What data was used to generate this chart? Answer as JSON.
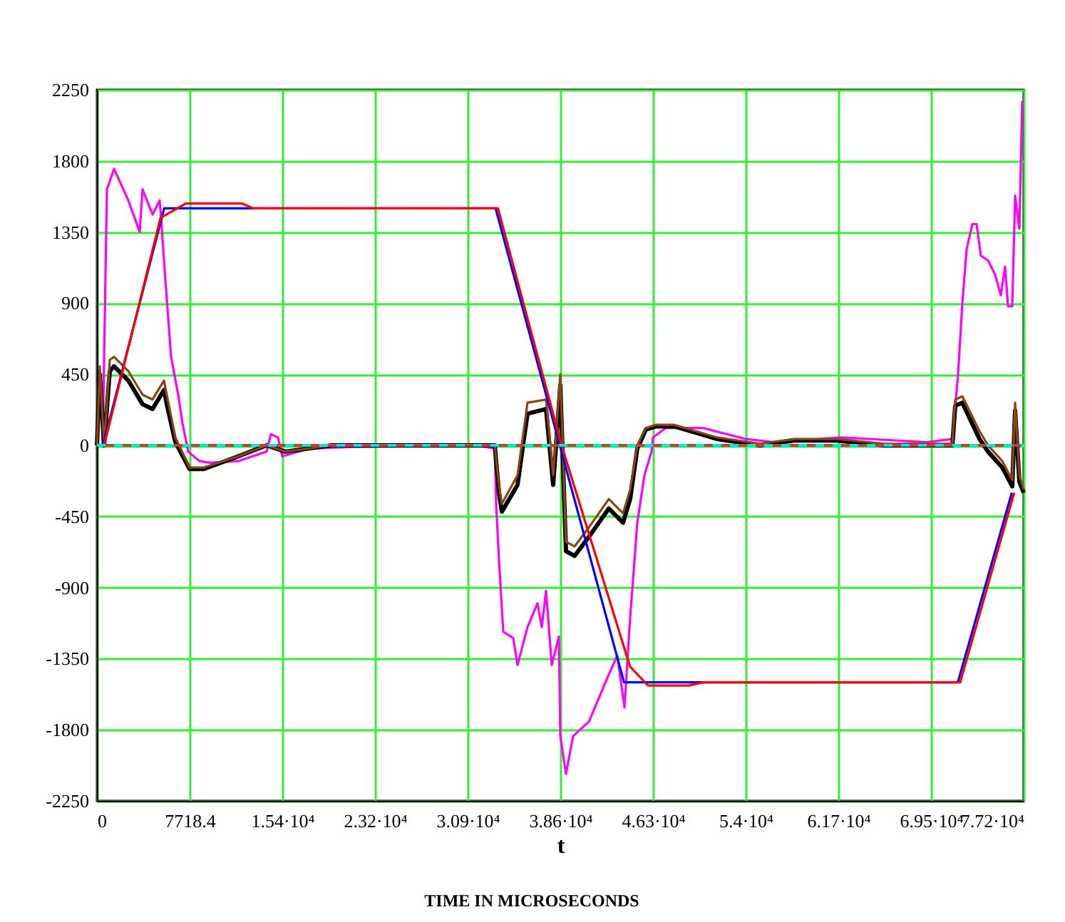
{
  "chart_data": {
    "type": "line",
    "xlabel": "t",
    "annotations": [
      "TIME IN MICROSECONDS"
    ],
    "xlim": [
      0,
      77184
    ],
    "ylim": [
      -2250,
      2250
    ],
    "xticks": [
      0,
      7718.4,
      {
        "value": 15436.8,
        "label": "1.54·10⁴"
      },
      {
        "value": 23155.2,
        "label": "2.32·10⁴"
      },
      {
        "value": 30873.6,
        "label": "3.09·10⁴"
      },
      {
        "value": 38592,
        "label": "3.86·10⁴"
      },
      {
        "value": 46310.4,
        "label": "4.63·10⁴"
      },
      {
        "value": 54028.8,
        "label": "5.4·10⁴"
      },
      {
        "value": 61747.2,
        "label": "6.17·10⁴"
      },
      {
        "value": 69465.6,
        "label": "6.95·10⁴"
      },
      {
        "value": 77184,
        "label": "7.72·10⁴"
      }
    ],
    "yticks": [
      -2250,
      -1800,
      -1350,
      -900,
      -450,
      0,
      450,
      900,
      1350,
      1800,
      2250
    ],
    "grid": true,
    "marker": "none",
    "line_style": "solid",
    "ref_lines": [
      {
        "axis": "y",
        "value": 0,
        "color": "#00e5ee",
        "line_style": "dashed"
      },
      {
        "axis": "y",
        "value": 0,
        "color": "#c04040",
        "line_style": "dashed"
      }
    ],
    "series": [
      {
        "color": "#ff00ff",
        "x": [
          0,
          475,
          831,
          1425,
          2612,
          3562,
          3800,
          4631,
          5225,
          5344,
          5581,
          6175,
          6768,
          7125,
          7600,
          8550,
          9381,
          11756,
          14131,
          14487,
          15081,
          15437,
          17693,
          21612,
          31467,
          33130,
          33249,
          33486,
          33842,
          34674,
          35030,
          35861,
          36692,
          37048,
          37405,
          37880,
          38473,
          38592,
          39067,
          39661,
          40967,
          42629,
          43342,
          43936,
          44411,
          45004,
          45598,
          46192,
          46310,
          47379,
          50467,
          54029,
          56404,
          61985,
          69110,
          71247,
          71722,
          72078,
          72434,
          72909,
          73266,
          73622,
          74216,
          74809,
          75284,
          75641,
          75878,
          76234,
          76472,
          76828,
          77066
        ],
        "values": [
          0,
          0,
          1620,
          1750,
          1550,
          1350,
          1620,
          1460,
          1550,
          1440,
          1170,
          560,
          320,
          140,
          -40,
          -100,
          -110,
          -100,
          -40,
          70,
          50,
          -70,
          -20,
          -10,
          0,
          -20,
          -370,
          -730,
          -1180,
          -1220,
          -1390,
          -1150,
          -1000,
          -1150,
          -920,
          -1390,
          -1210,
          -1840,
          -2080,
          -1840,
          -1750,
          -1450,
          -1330,
          -1660,
          -1090,
          -490,
          -190,
          -40,
          50,
          110,
          110,
          40,
          20,
          50,
          20,
          40,
          450,
          900,
          1240,
          1400,
          1400,
          1200,
          1170,
          1080,
          950,
          1130,
          880,
          880,
          1580,
          1370,
          2180
        ]
      },
      {
        "color": "#000000",
        "x": [
          0,
          237,
          594,
          1069,
          1425,
          2612,
          3800,
          4631,
          5581,
          5818,
          6531,
          7718,
          8906,
          11756,
          14131,
          15674,
          19593,
          33130,
          33486,
          33724,
          35030,
          35861,
          37405,
          37998,
          38592,
          39067,
          39780,
          40967,
          42629,
          43817,
          44411,
          45004,
          45717,
          46548,
          48092,
          51654,
          55216,
          58066,
          61628,
          65547,
          71247,
          71484,
          72078,
          73503,
          74216,
          75403,
          76234,
          76472,
          76828,
          77184
        ],
        "values": [
          0,
          450,
          0,
          470,
          500,
          410,
          260,
          230,
          350,
          260,
          20,
          -150,
          -150,
          -70,
          0,
          -40,
          0,
          0,
          -300,
          -420,
          -250,
          200,
          230,
          -250,
          380,
          -670,
          -700,
          -580,
          -400,
          -490,
          -340,
          -20,
          100,
          120,
          120,
          40,
          0,
          30,
          30,
          0,
          0,
          250,
          270,
          40,
          -40,
          -140,
          -260,
          220,
          -230,
          -300
        ]
      },
      {
        "color": "#8b4513",
        "x": [
          0,
          237,
          594,
          1069,
          1425,
          2612,
          3800,
          4631,
          5581,
          5818,
          6531,
          7718,
          8906,
          11756,
          14131,
          15674,
          19593,
          33130,
          33486,
          33724,
          35030,
          35861,
          37405,
          37998,
          38592,
          39067,
          39780,
          40967,
          42629,
          43817,
          44411,
          45004,
          45717,
          46548,
          48092,
          51654,
          55216,
          58066,
          61628,
          65547,
          71247,
          71484,
          72078,
          73503,
          74216,
          75403,
          76234,
          76472,
          76828,
          77184
        ],
        "values": [
          0,
          500,
          0,
          540,
          560,
          470,
          320,
          290,
          410,
          320,
          50,
          -140,
          -140,
          -70,
          0,
          -40,
          0,
          0,
          -250,
          -370,
          -190,
          270,
          290,
          -190,
          450,
          -610,
          -640,
          -520,
          -340,
          -430,
          -280,
          0,
          110,
          130,
          130,
          50,
          10,
          40,
          40,
          10,
          10,
          290,
          310,
          90,
          0,
          -100,
          -220,
          270,
          -190,
          -280
        ]
      },
      {
        "color": "#0000ff",
        "x": [
          0,
          500,
          5600,
          33200,
          43900,
          71700,
          76200
        ],
        "values": [
          0,
          0,
          1500,
          1500,
          -1500,
          -1500,
          -300
        ]
      },
      {
        "color": "#ff0000",
        "x": [
          0,
          600,
          5300,
          7400,
          12100,
          13000,
          33400,
          38700,
          44400,
          45900,
          49300,
          50500,
          71900,
          76400
        ],
        "values": [
          0,
          0,
          1440,
          1530,
          1530,
          1500,
          1500,
          0,
          -1400,
          -1520,
          -1520,
          -1500,
          -1500,
          -300
        ]
      }
    ]
  }
}
